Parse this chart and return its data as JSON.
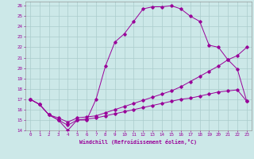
{
  "xlabel": "Windchill (Refroidissement éolien,°C)",
  "background_color": "#cce8e8",
  "line_color": "#990099",
  "grid_color": "#aacccc",
  "xlim": [
    -0.5,
    23.5
  ],
  "ylim": [
    14,
    26.4
  ],
  "xticks": [
    0,
    1,
    2,
    3,
    4,
    5,
    6,
    7,
    8,
    9,
    10,
    11,
    12,
    13,
    14,
    15,
    16,
    17,
    18,
    19,
    20,
    21,
    22,
    23
  ],
  "yticks": [
    14,
    15,
    16,
    17,
    18,
    19,
    20,
    21,
    22,
    23,
    24,
    25,
    26
  ],
  "lines": [
    {
      "x": [
        0,
        1,
        2,
        3,
        4,
        5,
        6,
        7,
        8,
        9,
        10,
        11,
        12,
        13,
        14,
        15,
        16,
        17,
        18,
        19,
        20,
        21,
        22,
        23
      ],
      "y": [
        17.0,
        16.5,
        15.5,
        15.0,
        14.0,
        15.0,
        15.0,
        17.0,
        20.2,
        22.5,
        23.3,
        24.5,
        25.7,
        25.9,
        25.9,
        26.0,
        25.7,
        25.0,
        24.5,
        22.2,
        22.0,
        20.8,
        19.9,
        16.8
      ]
    },
    {
      "x": [
        0,
        1,
        2,
        3,
        4,
        5,
        6,
        7,
        8,
        9,
        10,
        11,
        12,
        13,
        14,
        15,
        16,
        17,
        18,
        19,
        20,
        21,
        22,
        23
      ],
      "y": [
        17.0,
        16.5,
        15.5,
        15.2,
        14.8,
        15.2,
        15.3,
        15.4,
        15.7,
        16.0,
        16.3,
        16.6,
        16.9,
        17.2,
        17.5,
        17.8,
        18.2,
        18.7,
        19.2,
        19.7,
        20.2,
        20.8,
        21.2,
        22.0
      ]
    },
    {
      "x": [
        0,
        1,
        2,
        3,
        4,
        5,
        6,
        7,
        8,
        9,
        10,
        11,
        12,
        13,
        14,
        15,
        16,
        17,
        18,
        19,
        20,
        21,
        22,
        23
      ],
      "y": [
        17.0,
        16.5,
        15.5,
        15.0,
        14.5,
        15.0,
        15.1,
        15.2,
        15.4,
        15.6,
        15.8,
        16.0,
        16.2,
        16.4,
        16.6,
        16.8,
        17.0,
        17.1,
        17.3,
        17.5,
        17.7,
        17.8,
        17.9,
        16.8
      ]
    }
  ]
}
